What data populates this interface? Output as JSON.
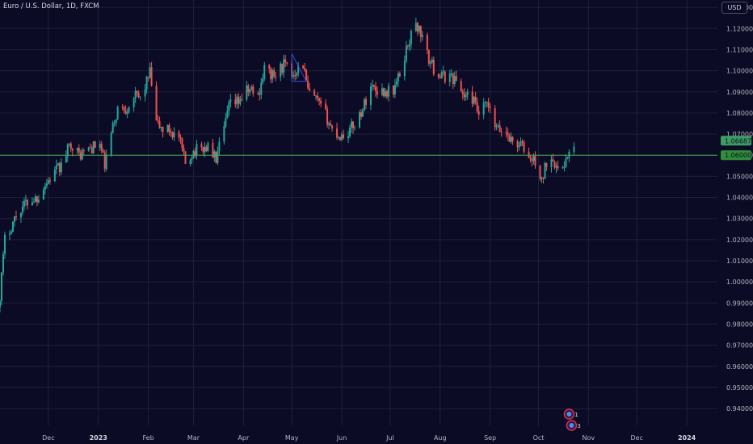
{
  "header": {
    "title": "Euro / U.S. Dollar, 1D, FXCM",
    "currency_label": "USD"
  },
  "colors": {
    "background": "#0b0b26",
    "grid": "#1e2139",
    "up": "#26a69a",
    "down": "#ef5350",
    "level_line": "#4caf50",
    "last_price_tag": "#3d9e62",
    "level_tag": "#2e8f3a",
    "pattern": "#3a4ee0"
  },
  "chart_data": {
    "type": "candlestick",
    "title": "Euro / U.S. Dollar, 1D, FXCM",
    "ylim": [
      0.932,
      1.1335
    ],
    "y_ticks": [
      1.13,
      1.12,
      1.11,
      1.1,
      1.09,
      1.08,
      1.07,
      1.06,
      1.05,
      1.04,
      1.03,
      1.02,
      1.01,
      1.0,
      0.99,
      0.98,
      0.97,
      0.96,
      0.95,
      0.94
    ],
    "y_tick_labels": [
      "1.13000",
      "1.12000",
      "1.11000",
      "1.10000",
      "1.09000",
      "1.08000",
      "1.07000",
      "1.06000",
      "1.05000",
      "1.04000",
      "1.03000",
      "1.02000",
      "1.01000",
      "1.00000",
      "0.99000",
      "0.98000",
      "0.97000",
      "0.96000",
      "0.95000",
      "0.94000"
    ],
    "x_range": [
      "2022-11-01",
      "2024-01-20"
    ],
    "x_ticks": [
      {
        "label": "Dec",
        "date": "2022-12-01",
        "bold": false
      },
      {
        "label": "2023",
        "date": "2023-01-01",
        "bold": true
      },
      {
        "label": "Feb",
        "date": "2023-02-01",
        "bold": false
      },
      {
        "label": "Mar",
        "date": "2023-03-01",
        "bold": false
      },
      {
        "label": "Apr",
        "date": "2023-04-01",
        "bold": false
      },
      {
        "label": "May",
        "date": "2023-05-01",
        "bold": false
      },
      {
        "label": "Jun",
        "date": "2023-06-01",
        "bold": false
      },
      {
        "label": "Jul",
        "date": "2023-07-01",
        "bold": false
      },
      {
        "label": "Aug",
        "date": "2023-08-01",
        "bold": false
      },
      {
        "label": "Sep",
        "date": "2023-09-01",
        "bold": false
      },
      {
        "label": "Oct",
        "date": "2023-10-01",
        "bold": false
      },
      {
        "label": "Nov",
        "date": "2023-11-01",
        "bold": false
      },
      {
        "label": "Dec",
        "date": "2023-12-01",
        "bold": false
      },
      {
        "label": "2024",
        "date": "2024-01-01",
        "bold": true
      }
    ],
    "close_path": [
      [
        "2022-11-01",
        0.994
      ],
      [
        "2022-11-04",
        1.02
      ],
      [
        "2022-11-10",
        1.03
      ],
      [
        "2022-11-14",
        1.035
      ],
      [
        "2022-11-18",
        1.038
      ],
      [
        "2022-11-24",
        1.04
      ],
      [
        "2022-11-28",
        1.045
      ],
      [
        "2022-12-05",
        1.052
      ],
      [
        "2022-12-09",
        1.055
      ],
      [
        "2022-12-15",
        1.066
      ],
      [
        "2022-12-20",
        1.06
      ],
      [
        "2022-12-26",
        1.063
      ],
      [
        "2023-01-02",
        1.065
      ],
      [
        "2023-01-05",
        1.055
      ],
      [
        "2023-01-09",
        1.07
      ],
      [
        "2023-01-13",
        1.082
      ],
      [
        "2023-01-18",
        1.082
      ],
      [
        "2023-01-23",
        1.088
      ],
      [
        "2023-01-27",
        1.087
      ],
      [
        "2023-02-02",
        1.099
      ],
      [
        "2023-02-06",
        1.075
      ],
      [
        "2023-02-10",
        1.072
      ],
      [
        "2023-02-14",
        1.072
      ],
      [
        "2023-02-20",
        1.068
      ],
      [
        "2023-02-24",
        1.056
      ],
      [
        "2023-03-01",
        1.062
      ],
      [
        "2023-03-06",
        1.063
      ],
      [
        "2023-03-10",
        1.064
      ],
      [
        "2023-03-15",
        1.058
      ],
      [
        "2023-03-20",
        1.072
      ],
      [
        "2023-03-23",
        1.083
      ],
      [
        "2023-03-28",
        1.085
      ],
      [
        "2023-04-03",
        1.09
      ],
      [
        "2023-04-06",
        1.091
      ],
      [
        "2023-04-10",
        1.088
      ],
      [
        "2023-04-14",
        1.101
      ],
      [
        "2023-04-20",
        1.097
      ],
      [
        "2023-04-26",
        1.103
      ],
      [
        "2023-05-01",
        1.098
      ],
      [
        "2023-05-04",
        1.101
      ],
      [
        "2023-05-08",
        1.103
      ],
      [
        "2023-05-11",
        1.09
      ],
      [
        "2023-05-16",
        1.086
      ],
      [
        "2023-05-22",
        1.079
      ],
      [
        "2023-05-26",
        1.072
      ],
      [
        "2023-05-31",
        1.069
      ],
      [
        "2023-06-05",
        1.071
      ],
      [
        "2023-06-09",
        1.075
      ],
      [
        "2023-06-14",
        1.082
      ],
      [
        "2023-06-19",
        1.093
      ],
      [
        "2023-06-23",
        1.091
      ],
      [
        "2023-06-28",
        1.09
      ],
      [
        "2023-07-03",
        1.091
      ],
      [
        "2023-07-07",
        1.098
      ],
      [
        "2023-07-12",
        1.113
      ],
      [
        "2023-07-17",
        1.122
      ],
      [
        "2023-07-20",
        1.118
      ],
      [
        "2023-07-24",
        1.107
      ],
      [
        "2023-07-28",
        1.101
      ],
      [
        "2023-08-02",
        1.097
      ],
      [
        "2023-08-07",
        1.098
      ],
      [
        "2023-08-11",
        1.095
      ],
      [
        "2023-08-16",
        1.088
      ],
      [
        "2023-08-21",
        1.087
      ],
      [
        "2023-08-25",
        1.079
      ],
      [
        "2023-08-30",
        1.084
      ],
      [
        "2023-09-05",
        1.072
      ],
      [
        "2023-09-11",
        1.071
      ],
      [
        "2023-09-15",
        1.066
      ],
      [
        "2023-09-20",
        1.065
      ],
      [
        "2023-09-26",
        1.058
      ],
      [
        "2023-09-29",
        1.057
      ],
      [
        "2023-10-03",
        1.047
      ],
      [
        "2023-10-06",
        1.057
      ],
      [
        "2023-10-10",
        1.06
      ],
      [
        "2023-10-13",
        1.051
      ],
      [
        "2023-10-17",
        1.057
      ],
      [
        "2023-10-20",
        1.059
      ],
      [
        "2023-10-23",
        1.067
      ]
    ],
    "horizontal_level": 1.06,
    "horizontal_level_label": "1.06000",
    "last_price": 1.06687,
    "last_price_label": "1.06687",
    "pattern_triangle": [
      [
        "2023-05-01",
        1.108
      ],
      [
        "2023-05-10",
        1.095
      ],
      [
        "2023-05-01",
        1.095
      ]
    ]
  },
  "events": {
    "dates": [
      "2023-10-20",
      "2023-10-20"
    ],
    "labels": [
      "1",
      "3"
    ]
  }
}
